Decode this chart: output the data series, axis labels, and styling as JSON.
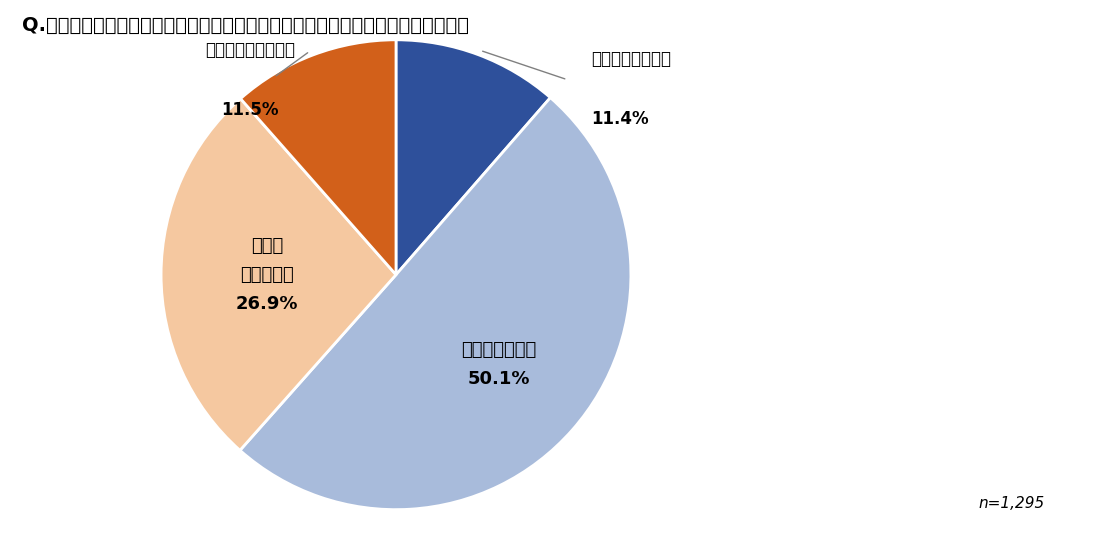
{
  "title": "Q.あなたは、各企業のサーキュラーエコノミーへの取り組みに関心がありますか？",
  "slices": [
    {
      "label": "とても関心がある",
      "pct_label": "11.4%",
      "value": 11.4,
      "color": "#2E509B"
    },
    {
      "label": "やや関心がある",
      "pct_label": "50.1%",
      "value": 50.1,
      "color": "#A8BBDB"
    },
    {
      "label": "あまり\n関心がない",
      "pct_label": "26.9%",
      "value": 26.9,
      "color": "#F5C8A0"
    },
    {
      "label": "まったく関心がない",
      "pct_label": "11.5%",
      "value": 11.5,
      "color": "#D2601A"
    }
  ],
  "note": "n=1,295",
  "background_color": "#FFFFFF",
  "title_fontsize": 14,
  "label_fontsize": 12,
  "note_fontsize": 11
}
